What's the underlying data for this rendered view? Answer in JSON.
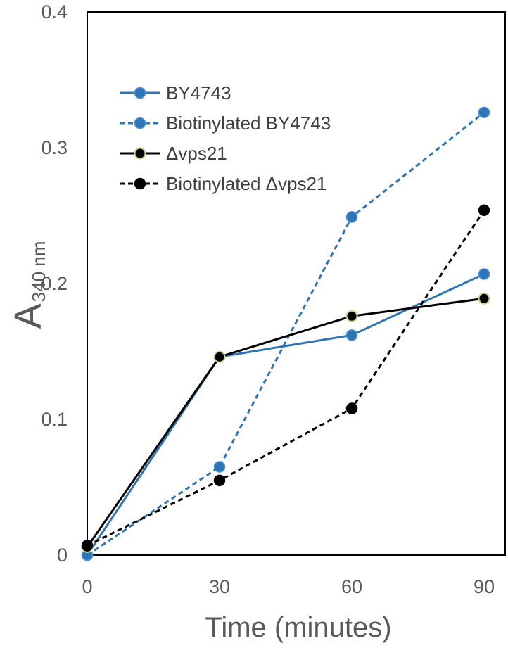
{
  "chart_data": {
    "type": "line",
    "x": [
      0,
      30,
      60,
      90
    ],
    "xlabel": "Time (minutes)",
    "ylabel": "A",
    "ylabel_subscript": "340 nm",
    "xlim": [
      0,
      90
    ],
    "ylim": [
      0,
      0.4
    ],
    "xticks": [
      "0",
      "30",
      "60",
      "90"
    ],
    "yticks": [
      "0",
      "0.1",
      "0.2",
      "0.3",
      "0.4"
    ],
    "grid": false,
    "legend_position": "upper-left",
    "series": [
      {
        "name": "BY4743",
        "values": [
          0.0,
          0.146,
          0.162,
          0.207
        ],
        "color": "#2E75B6",
        "marker": "#2E75B6",
        "dashed": false
      },
      {
        "name": "Biotinylated BY4743",
        "values": [
          0.0,
          0.065,
          0.249,
          0.326
        ],
        "color": "#2E75B6",
        "marker": "#2E75B6",
        "dashed": true
      },
      {
        "name": "Δvps21",
        "values": [
          0.006,
          0.146,
          0.176,
          0.189
        ],
        "color": "#000000",
        "marker": "#000000",
        "dashed": false
      },
      {
        "name": "Biotinylated Δvps21",
        "values": [
          0.007,
          0.055,
          0.108,
          0.254
        ],
        "color": "#000000",
        "marker": "#000000",
        "dashed": true
      }
    ]
  }
}
